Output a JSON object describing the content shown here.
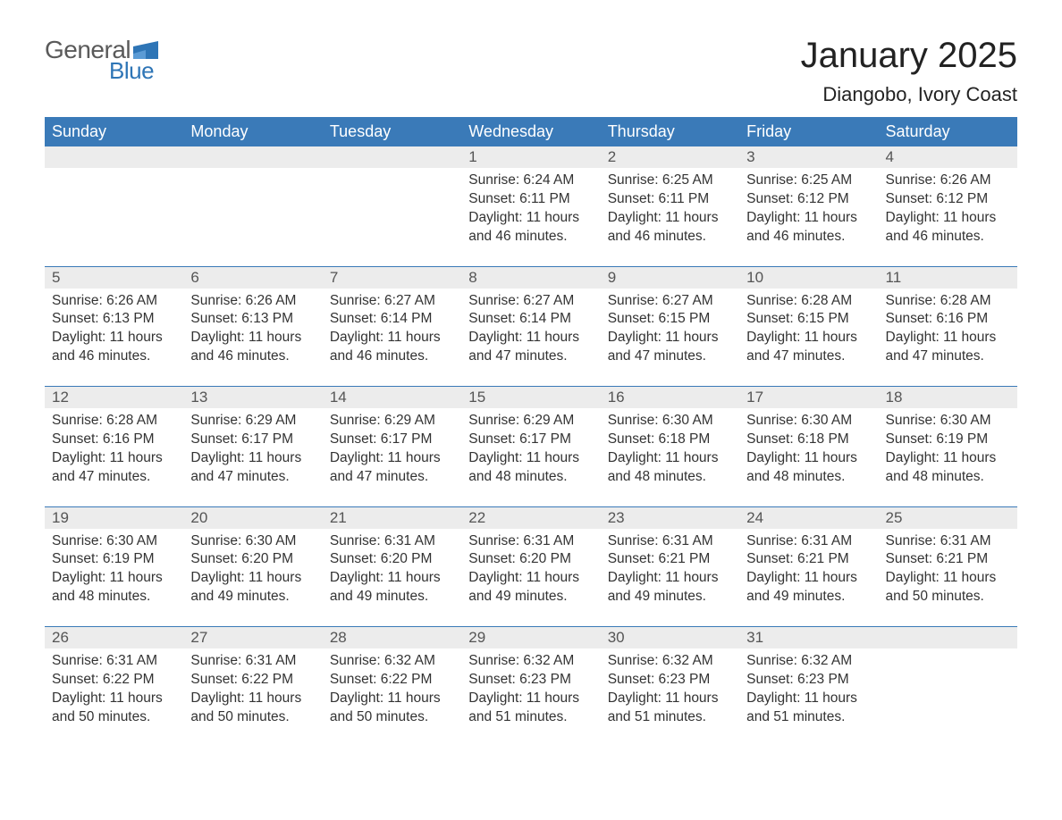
{
  "logo": {
    "text_general": "General",
    "text_blue": "Blue",
    "flag_color": "#2e75b6"
  },
  "title": "January 2025",
  "location": "Diangobo, Ivory Coast",
  "colors": {
    "header_bg": "#3a7ab8",
    "header_text": "#ffffff",
    "daynum_bg": "#ececec",
    "row_border": "#3a7ab8",
    "body_text": "#333333",
    "logo_gray": "#5a5a5a",
    "logo_blue": "#2e75b6"
  },
  "weekdays": [
    "Sunday",
    "Monday",
    "Tuesday",
    "Wednesday",
    "Thursday",
    "Friday",
    "Saturday"
  ],
  "labels": {
    "sunrise": "Sunrise:",
    "sunset": "Sunset:",
    "daylight": "Daylight:"
  },
  "weeks": [
    [
      null,
      null,
      null,
      {
        "n": "1",
        "sunrise": "6:24 AM",
        "sunset": "6:11 PM",
        "daylight": "11 hours and 46 minutes."
      },
      {
        "n": "2",
        "sunrise": "6:25 AM",
        "sunset": "6:11 PM",
        "daylight": "11 hours and 46 minutes."
      },
      {
        "n": "3",
        "sunrise": "6:25 AM",
        "sunset": "6:12 PM",
        "daylight": "11 hours and 46 minutes."
      },
      {
        "n": "4",
        "sunrise": "6:26 AM",
        "sunset": "6:12 PM",
        "daylight": "11 hours and 46 minutes."
      }
    ],
    [
      {
        "n": "5",
        "sunrise": "6:26 AM",
        "sunset": "6:13 PM",
        "daylight": "11 hours and 46 minutes."
      },
      {
        "n": "6",
        "sunrise": "6:26 AM",
        "sunset": "6:13 PM",
        "daylight": "11 hours and 46 minutes."
      },
      {
        "n": "7",
        "sunrise": "6:27 AM",
        "sunset": "6:14 PM",
        "daylight": "11 hours and 46 minutes."
      },
      {
        "n": "8",
        "sunrise": "6:27 AM",
        "sunset": "6:14 PM",
        "daylight": "11 hours and 47 minutes."
      },
      {
        "n": "9",
        "sunrise": "6:27 AM",
        "sunset": "6:15 PM",
        "daylight": "11 hours and 47 minutes."
      },
      {
        "n": "10",
        "sunrise": "6:28 AM",
        "sunset": "6:15 PM",
        "daylight": "11 hours and 47 minutes."
      },
      {
        "n": "11",
        "sunrise": "6:28 AM",
        "sunset": "6:16 PM",
        "daylight": "11 hours and 47 minutes."
      }
    ],
    [
      {
        "n": "12",
        "sunrise": "6:28 AM",
        "sunset": "6:16 PM",
        "daylight": "11 hours and 47 minutes."
      },
      {
        "n": "13",
        "sunrise": "6:29 AM",
        "sunset": "6:17 PM",
        "daylight": "11 hours and 47 minutes."
      },
      {
        "n": "14",
        "sunrise": "6:29 AM",
        "sunset": "6:17 PM",
        "daylight": "11 hours and 47 minutes."
      },
      {
        "n": "15",
        "sunrise": "6:29 AM",
        "sunset": "6:17 PM",
        "daylight": "11 hours and 48 minutes."
      },
      {
        "n": "16",
        "sunrise": "6:30 AM",
        "sunset": "6:18 PM",
        "daylight": "11 hours and 48 minutes."
      },
      {
        "n": "17",
        "sunrise": "6:30 AM",
        "sunset": "6:18 PM",
        "daylight": "11 hours and 48 minutes."
      },
      {
        "n": "18",
        "sunrise": "6:30 AM",
        "sunset": "6:19 PM",
        "daylight": "11 hours and 48 minutes."
      }
    ],
    [
      {
        "n": "19",
        "sunrise": "6:30 AM",
        "sunset": "6:19 PM",
        "daylight": "11 hours and 48 minutes."
      },
      {
        "n": "20",
        "sunrise": "6:30 AM",
        "sunset": "6:20 PM",
        "daylight": "11 hours and 49 minutes."
      },
      {
        "n": "21",
        "sunrise": "6:31 AM",
        "sunset": "6:20 PM",
        "daylight": "11 hours and 49 minutes."
      },
      {
        "n": "22",
        "sunrise": "6:31 AM",
        "sunset": "6:20 PM",
        "daylight": "11 hours and 49 minutes."
      },
      {
        "n": "23",
        "sunrise": "6:31 AM",
        "sunset": "6:21 PM",
        "daylight": "11 hours and 49 minutes."
      },
      {
        "n": "24",
        "sunrise": "6:31 AM",
        "sunset": "6:21 PM",
        "daylight": "11 hours and 49 minutes."
      },
      {
        "n": "25",
        "sunrise": "6:31 AM",
        "sunset": "6:21 PM",
        "daylight": "11 hours and 50 minutes."
      }
    ],
    [
      {
        "n": "26",
        "sunrise": "6:31 AM",
        "sunset": "6:22 PM",
        "daylight": "11 hours and 50 minutes."
      },
      {
        "n": "27",
        "sunrise": "6:31 AM",
        "sunset": "6:22 PM",
        "daylight": "11 hours and 50 minutes."
      },
      {
        "n": "28",
        "sunrise": "6:32 AM",
        "sunset": "6:22 PM",
        "daylight": "11 hours and 50 minutes."
      },
      {
        "n": "29",
        "sunrise": "6:32 AM",
        "sunset": "6:23 PM",
        "daylight": "11 hours and 51 minutes."
      },
      {
        "n": "30",
        "sunrise": "6:32 AM",
        "sunset": "6:23 PM",
        "daylight": "11 hours and 51 minutes."
      },
      {
        "n": "31",
        "sunrise": "6:32 AM",
        "sunset": "6:23 PM",
        "daylight": "11 hours and 51 minutes."
      },
      null
    ]
  ]
}
